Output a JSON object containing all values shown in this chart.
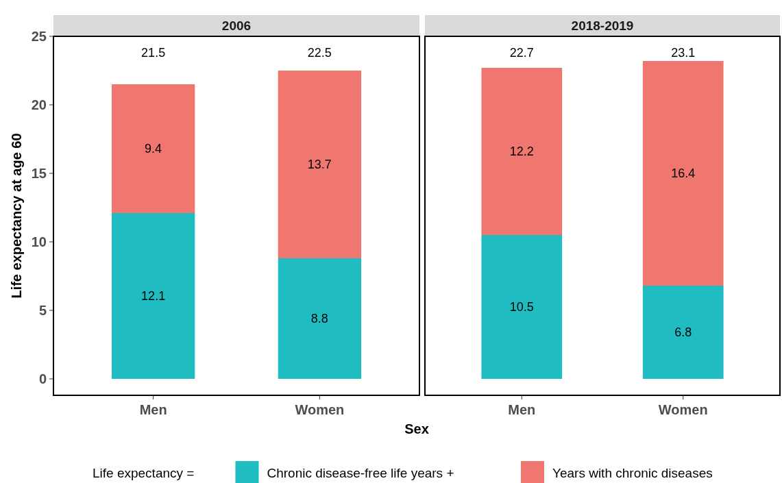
{
  "chart_data": [
    {
      "type": "bar",
      "title": "2006",
      "stacked": true,
      "categories": [
        "Men",
        "Women"
      ],
      "ylim": [
        -1.2,
        25
      ],
      "yticks": [
        0,
        5,
        10,
        15,
        20,
        25
      ],
      "ylabel": "Life expectancy at age 60",
      "xlabel": "Sex",
      "legend": "bottom",
      "legend_title": "Life expectancy =",
      "data_labels": true,
      "totals": [
        "21.5",
        "22.5"
      ],
      "series": [
        {
          "name": "Chronic disease-free life years +",
          "color": "#1fbcc2",
          "values": [
            12.1,
            8.8
          ]
        },
        {
          "name": "Years with chronic diseases",
          "color": "#f07670",
          "values": [
            9.4,
            13.7
          ]
        }
      ]
    },
    {
      "type": "bar",
      "title": "2018-2019",
      "stacked": true,
      "categories": [
        "Men",
        "Women"
      ],
      "ylim": [
        -1.2,
        25
      ],
      "yticks": [
        0,
        5,
        10,
        15,
        20,
        25
      ],
      "tick_labels": "x",
      "data_labels": true,
      "totals": [
        "22.7",
        "23.1"
      ],
      "series": [
        {
          "color": "#1fbcc2",
          "values": [
            10.5,
            6.8
          ]
        },
        {
          "color": "#f07670",
          "values": [
            12.2,
            16.4
          ]
        }
      ]
    }
  ]
}
